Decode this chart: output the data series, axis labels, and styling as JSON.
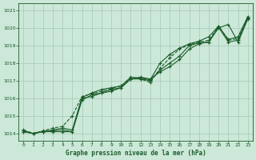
{
  "title": "Graphe pression niveau de la mer (hPa)",
  "bg_color": "#cce8d8",
  "grid_color": "#a8c8b8",
  "line_color": "#1a5c2a",
  "xlim": [
    -0.5,
    23.5
  ],
  "ylim": [
    1013.6,
    1021.4
  ],
  "yticks": [
    1014,
    1015,
    1016,
    1017,
    1018,
    1019,
    1020,
    1021
  ],
  "xticks": [
    0,
    1,
    2,
    3,
    4,
    5,
    6,
    7,
    8,
    9,
    10,
    11,
    12,
    13,
    14,
    15,
    16,
    17,
    18,
    19,
    20,
    21,
    22,
    23
  ],
  "series": [
    {
      "y": [
        1014.1,
        1014.0,
        1014.1,
        1014.1,
        1014.1,
        1014.1,
        1015.9,
        1016.2,
        1016.3,
        1016.5,
        1016.6,
        1017.1,
        1017.2,
        1017.1,
        1017.5,
        1017.8,
        1018.2,
        1018.8,
        1019.1,
        1019.2,
        1020.0,
        1020.2,
        1019.2,
        1020.5
      ],
      "ls": "-",
      "marker": true
    },
    {
      "y": [
        1014.1,
        1014.0,
        1014.1,
        1014.15,
        1014.2,
        1014.1,
        1016.0,
        1016.1,
        1016.3,
        1016.4,
        1016.6,
        1017.1,
        1017.1,
        1017.0,
        1017.6,
        1018.0,
        1018.4,
        1019.0,
        1019.15,
        1019.2,
        1020.05,
        1019.2,
        1019.3,
        1020.55
      ],
      "ls": "-",
      "marker": true
    },
    {
      "y": [
        1014.2,
        1014.0,
        1014.15,
        1014.3,
        1014.4,
        1015.0,
        1016.1,
        1016.25,
        1016.4,
        1016.55,
        1016.7,
        1017.15,
        1017.1,
        1016.9,
        1017.7,
        1018.3,
        1018.8,
        1019.05,
        1019.2,
        1019.3,
        1020.1,
        1019.3,
        1019.4,
        1020.6
      ],
      "ls": "--",
      "marker": true
    },
    {
      "y": [
        1014.15,
        1014.0,
        1014.1,
        1014.2,
        1014.3,
        1014.2,
        1016.05,
        1016.3,
        1016.5,
        1016.6,
        1016.7,
        1017.2,
        1017.15,
        1017.05,
        1018.0,
        1018.5,
        1018.85,
        1019.1,
        1019.25,
        1019.5,
        1020.1,
        1019.35,
        1019.5,
        1020.65
      ],
      "ls": "-",
      "marker": true
    }
  ],
  "markersize": 3.5,
  "linewidth": 0.8
}
